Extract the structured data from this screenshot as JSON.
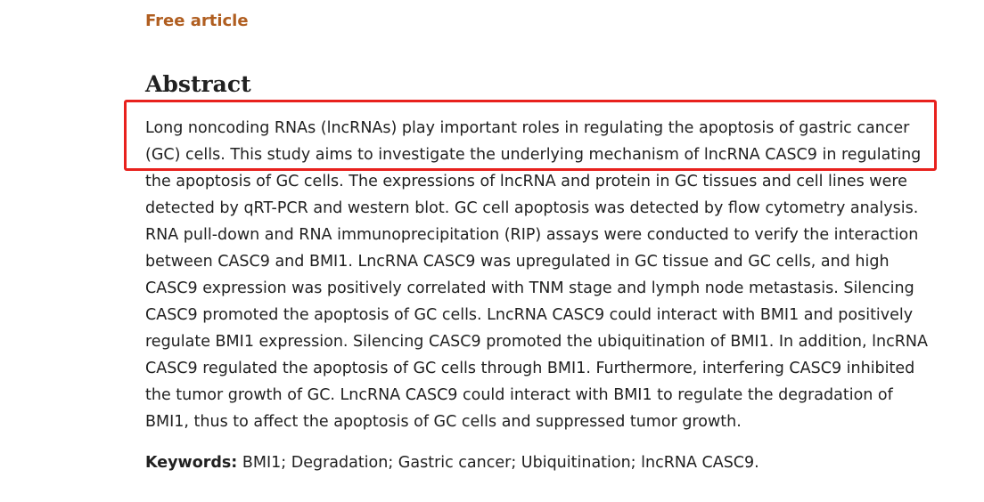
{
  "article": {
    "free_article_label": "Free article"
  },
  "abstract": {
    "heading": "Abstract",
    "lines": [
      "Long noncoding RNAs (lncRNAs) play important roles in regulating the apoptosis of gastric cancer",
      "(GC) cells. This study aims to investigate the underlying mechanism of lncRNA CASC9 in regulating",
      "the apoptosis of GC cells. The expressions of lncRNA and protein in GC tissues and cell lines were",
      "detected by qRT-PCR and western blot. GC cell apoptosis was detected by flow cytometry analysis.",
      "RNA pull-down and RNA immunoprecipitation (RIP) assays were conducted to verify the interaction",
      "between CASC9 and BMI1. LncRNA CASC9 was upregulated in GC tissue and GC cells, and high",
      "CASC9 expression was positively correlated with TNM stage and lymph node metastasis. Silencing",
      "CASC9 promoted the apoptosis of GC cells. LncRNA CASC9 could interact with BMI1 and positively",
      "regulate BMI1 expression. Silencing CASC9 promoted the ubiquitination of BMI1. In addition, lncRNA",
      "CASC9 regulated the apoptosis of GC cells through BMI1. Furthermore, interfering CASC9 inhibited",
      "the tumor growth of GC. LncRNA CASC9 could interact with BMI1 to regulate the degradation of",
      "BMI1, thus to affect the apoptosis of GC cells and suppressed tumor growth."
    ]
  },
  "keywords": {
    "label": "Keywords:",
    "values": " BMI1; Degradation; Gastric cancer; Ubiquitination; lncRNA CASC9."
  },
  "annotation": {
    "highlight_color": "#e8211d"
  },
  "colors": {
    "free_article": "#b05e20",
    "text": "#212121",
    "background": "#ffffff"
  }
}
